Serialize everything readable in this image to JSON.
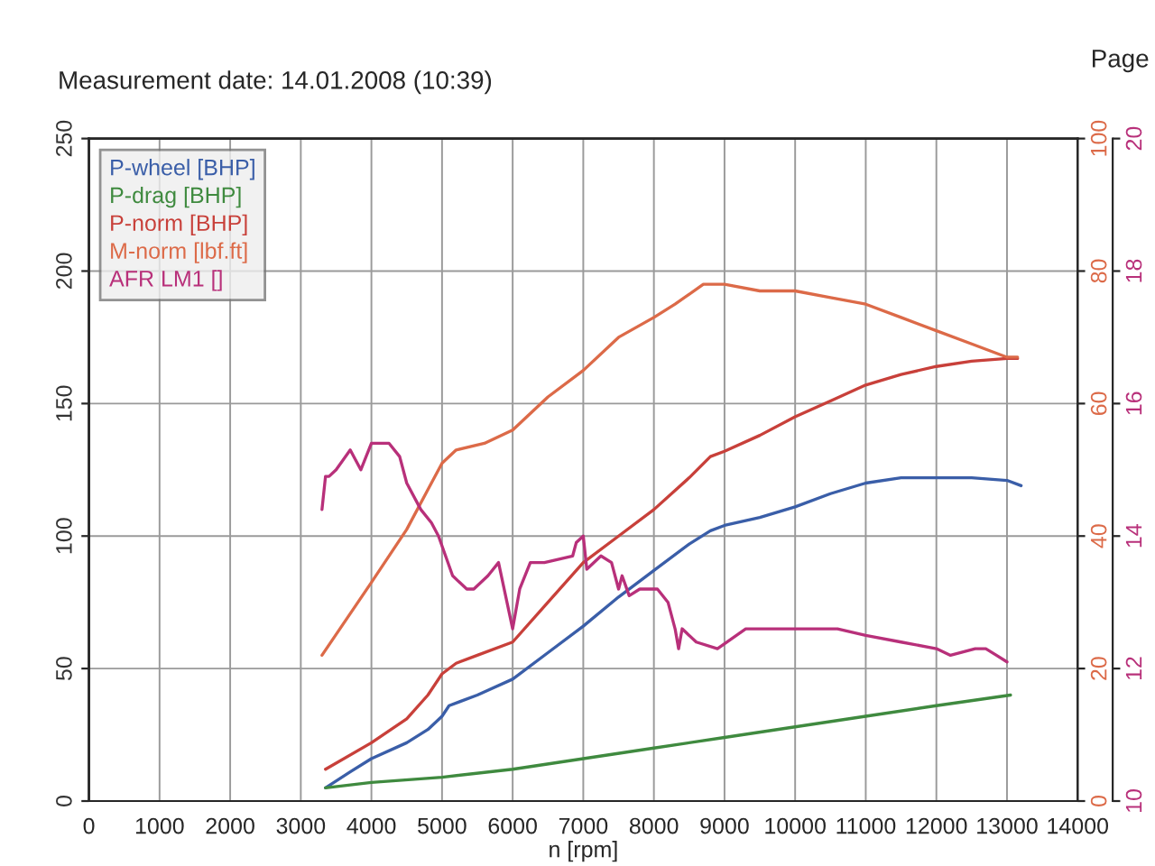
{
  "chart_data": {
    "type": "line",
    "title": "Measurement date: 14.01.2008 (10:39)",
    "xlabel": "n [rpm]",
    "annotations": [
      "Page"
    ],
    "xlim": [
      0,
      14000
    ],
    "xticks": [
      0,
      1000,
      2000,
      3000,
      4000,
      5000,
      6000,
      7000,
      8000,
      9000,
      10000,
      11000,
      12000,
      13000,
      14000
    ],
    "ylim": [
      0,
      250
    ],
    "yticks": [
      0,
      50,
      100,
      150,
      200,
      250
    ],
    "y2lim": [
      0,
      100
    ],
    "y2ticks": [
      0,
      20,
      40,
      60,
      80,
      100
    ],
    "y3lim": [
      10,
      20
    ],
    "y3ticks": [
      10,
      12,
      14,
      16,
      18,
      20
    ],
    "grid": true,
    "legend": "top left",
    "series": [
      {
        "name": "P-wheel [BHP]",
        "color": "#3a5ea8",
        "x": [
          3350,
          3700,
          4000,
          4500,
          4800,
          5000,
          5100,
          5500,
          6000,
          6500,
          7000,
          7500,
          8000,
          8500,
          8800,
          9000,
          9500,
          10000,
          10500,
          11000,
          11500,
          12000,
          12500,
          13000,
          13200
        ],
        "values": [
          5,
          11,
          16,
          22,
          27,
          32,
          36,
          40,
          46,
          56,
          66,
          77,
          87,
          97,
          102,
          104,
          107,
          111,
          116,
          120,
          122,
          122,
          122,
          121,
          119
        ]
      },
      {
        "name": "P-drag [BHP]",
        "color": "#3f8a3f",
        "x": [
          3350,
          4000,
          5000,
          6000,
          7000,
          8000,
          9000,
          10000,
          11000,
          12000,
          13050
        ],
        "values": [
          5,
          7,
          9,
          12,
          16,
          20,
          24,
          28,
          32,
          36,
          40
        ]
      },
      {
        "name": "P-norm [BHP]",
        "color": "#c8403a",
        "x": [
          3350,
          4000,
          4500,
          4800,
          5000,
          5200,
          5500,
          6000,
          6500,
          7000,
          7500,
          8000,
          8500,
          8800,
          9000,
          9500,
          10000,
          10500,
          11000,
          11500,
          12000,
          12500,
          13000,
          13150
        ],
        "values": [
          12,
          22,
          31,
          40,
          48,
          52,
          55,
          60,
          75,
          90,
          100,
          110,
          122,
          130,
          132,
          138,
          145,
          151,
          157,
          161,
          164,
          166,
          167,
          167
        ]
      },
      {
        "name": "M-norm [lbf.ft]",
        "color": "#dc6a48",
        "axis": "y2",
        "x": [
          3300,
          4000,
          4500,
          4800,
          5000,
          5200,
          5600,
          6000,
          6500,
          7000,
          7500,
          8000,
          8300,
          8700,
          9000,
          9500,
          10000,
          10500,
          11000,
          11500,
          12000,
          12500,
          13000,
          13150
        ],
        "values": [
          22,
          33,
          41,
          47,
          51,
          53,
          54,
          56,
          61,
          65,
          70,
          73,
          75,
          78,
          78,
          77,
          77,
          76,
          75,
          73,
          71,
          69,
          67,
          67
        ]
      },
      {
        "name": "AFR LM1 []",
        "color": "#b8307a",
        "axis": "y3",
        "x": [
          3300,
          3350,
          3400,
          3500,
          3700,
          3850,
          4000,
          4250,
          4400,
          4500,
          4700,
          4850,
          4950,
          5150,
          5350,
          5450,
          5650,
          5800,
          6000,
          6100,
          6250,
          6450,
          6850,
          6900,
          7000,
          7050,
          7250,
          7400,
          7500,
          7550,
          7650,
          7800,
          8050,
          8200,
          8300,
          8350,
          8400,
          8600,
          8900,
          9300,
          9800,
          10200,
          10600,
          11000,
          11500,
          12000,
          12200,
          12550,
          12700,
          12850,
          13000
        ],
        "values": [
          14.4,
          14.9,
          14.9,
          15.0,
          15.3,
          15.0,
          15.4,
          15.4,
          15.2,
          14.8,
          14.4,
          14.2,
          14.0,
          13.4,
          13.2,
          13.2,
          13.4,
          13.6,
          12.6,
          13.2,
          13.6,
          13.6,
          13.7,
          13.9,
          14.0,
          13.5,
          13.7,
          13.6,
          13.2,
          13.4,
          13.1,
          13.2,
          13.2,
          13.0,
          12.6,
          12.3,
          12.6,
          12.4,
          12.3,
          12.6,
          12.6,
          12.6,
          12.6,
          12.5,
          12.4,
          12.3,
          12.2,
          12.3,
          12.3,
          12.2,
          12.1
        ]
      }
    ]
  }
}
